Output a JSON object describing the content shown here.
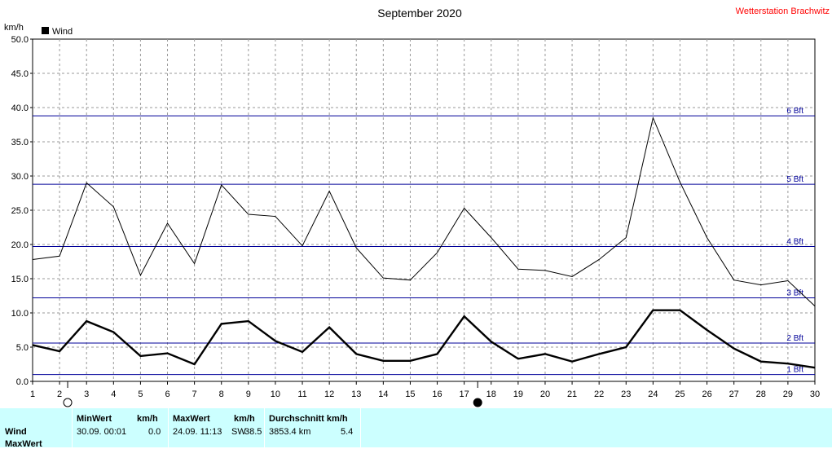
{
  "chart_data": {
    "type": "line",
    "title": "September 2020",
    "station": "Wetterstation Brachwitz",
    "ylabel": "km/h",
    "legend": "Wind",
    "legend_color": "#000000",
    "ylim": [
      0,
      50
    ],
    "xlim": [
      1,
      30
    ],
    "grid": true,
    "y_ticks": [
      "0.0",
      "5.0",
      "10.0",
      "15.0",
      "20.0",
      "25.0",
      "30.0",
      "35.0",
      "40.0",
      "45.0",
      "50.0"
    ],
    "x_ticks": [
      "1",
      "2",
      "3",
      "4",
      "5",
      "6",
      "7",
      "8",
      "9",
      "10",
      "11",
      "12",
      "13",
      "14",
      "15",
      "16",
      "17",
      "18",
      "19",
      "20",
      "21",
      "22",
      "23",
      "24",
      "25",
      "26",
      "27",
      "28",
      "29",
      "30"
    ],
    "beaufort_lines": [
      {
        "label": "1 Bft",
        "value": 1
      },
      {
        "label": "2 Bft",
        "value": 5.6
      },
      {
        "label": "3 Bft",
        "value": 12.2
      },
      {
        "label": "4 Bft",
        "value": 19.7
      },
      {
        "label": "5 Bft",
        "value": 28.8
      },
      {
        "label": "6 Bft",
        "value": 38.8
      }
    ],
    "series": [
      {
        "values": [
          17.8,
          18.3,
          29.0,
          25.5,
          15.5,
          23.1,
          17.2,
          28.7,
          24.4,
          24.1,
          19.8,
          27.8,
          19.5,
          15.1,
          14.8,
          18.8,
          25.3,
          21.0,
          16.4,
          16.2,
          15.3,
          17.8,
          21.0,
          38.5,
          29.1,
          21.0,
          14.8,
          14.1,
          14.7,
          11.0
        ]
      },
      {
        "values": [
          5.3,
          4.4,
          8.8,
          7.2,
          3.7,
          4.1,
          2.5,
          8.4,
          8.8,
          5.9,
          4.3,
          7.9,
          4.0,
          3.0,
          3.0,
          4.0,
          9.5,
          5.8,
          3.3,
          4.0,
          2.9,
          4.0,
          5.0,
          10.4,
          10.4,
          7.5,
          4.8,
          2.9,
          2.6,
          2.0
        ]
      }
    ],
    "markers": [
      {
        "type": "circle-open",
        "x": 2.3
      },
      {
        "type": "circle-filled",
        "x": 17.5
      }
    ]
  },
  "summary": {
    "row1_label": "Wind",
    "row2_label": "MaxWert",
    "min_header": "MinWert",
    "max_header": "MaxWert",
    "unit": "km/h",
    "avg_header": "Durchschnitt km/h",
    "min_time": "30.09.  00:01",
    "min_value": "0.0",
    "max_time": "24.09.  11:13",
    "max_dir": "SW",
    "max_value": "38.5",
    "avg_km": "3853.4 km",
    "avg_value": "5.4"
  }
}
